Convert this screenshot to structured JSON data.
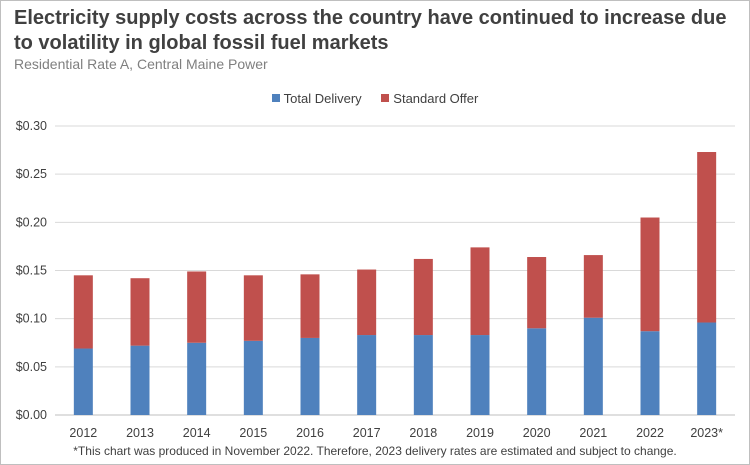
{
  "chart_data": {
    "type": "bar",
    "stacked": true,
    "title": "Electricity supply costs across the country have continued to increase due to volatility in global fossil fuel markets",
    "subtitle": "Residential Rate A, Central Maine Power",
    "categories": [
      "2012",
      "2013",
      "2014",
      "2015",
      "2016",
      "2017",
      "2018",
      "2019",
      "2020",
      "2021",
      "2022",
      "2023*"
    ],
    "series": [
      {
        "name": "Total Delivery",
        "color": "#4f81bd",
        "values": [
          0.069,
          0.072,
          0.075,
          0.077,
          0.08,
          0.083,
          0.083,
          0.083,
          0.09,
          0.101,
          0.087,
          0.096
        ]
      },
      {
        "name": "Standard Offer",
        "color": "#c0504d",
        "values": [
          0.076,
          0.07,
          0.074,
          0.068,
          0.066,
          0.068,
          0.079,
          0.091,
          0.074,
          0.065,
          0.118,
          0.177
        ]
      }
    ],
    "ylim": [
      0,
      0.3
    ],
    "yticks": [
      "$0.00",
      "$0.05",
      "$0.10",
      "$0.15",
      "$0.20",
      "$0.25",
      "$0.30"
    ],
    "ytick_values": [
      0,
      0.05,
      0.1,
      0.15,
      0.2,
      0.25,
      0.3
    ],
    "grid": true,
    "legend_position": "top-center",
    "footnote": "*This chart was produced in November 2022. Therefore, 2023 delivery rates are estimated and subject to change."
  }
}
